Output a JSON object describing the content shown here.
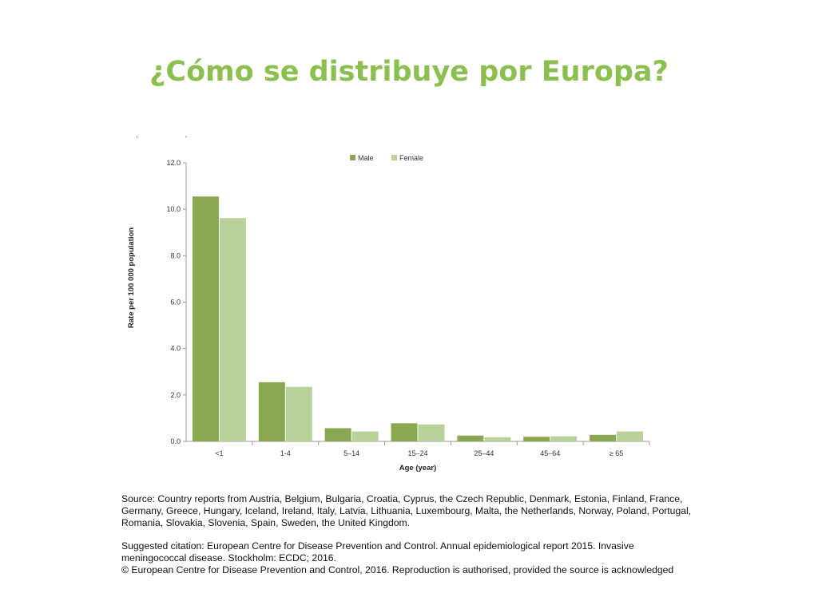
{
  "slide": {
    "title": "¿Cómo se distribuye por Europa?",
    "title_color": "#8cc04e",
    "stray_marks": ".   ."
  },
  "chart_data": {
    "type": "bar",
    "categories": [
      "<1",
      "1-4",
      "5–14",
      "15–24",
      "25–44",
      "45–64",
      "≥ 65"
    ],
    "series": [
      {
        "name": "Male",
        "color": "#8aa851",
        "values": [
          10.55,
          2.55,
          0.57,
          0.78,
          0.25,
          0.2,
          0.28
        ]
      },
      {
        "name": "Female",
        "color": "#b9d19a",
        "values": [
          9.62,
          2.35,
          0.43,
          0.73,
          0.18,
          0.22,
          0.43
        ]
      }
    ],
    "xlabel": "Age (year)",
    "ylabel": "Rate per 100 000 population",
    "ylim": [
      0,
      12
    ],
    "yticks": [
      "0.0",
      "2.0",
      "4.0",
      "6.0",
      "8.0",
      "10.0",
      "12.0"
    ],
    "grid": false,
    "legend_position": "top-center"
  },
  "footer": {
    "source": "Source: Country reports from Austria, Belgium, Bulgaria, Croatia, Cyprus, the Czech Republic, Denmark, Estonia, Finland, France, Germany, Greece, Hungary, Iceland, Ireland, Italy, Latvia, Lithuania, Luxembourg, Malta, the Netherlands, Norway, Poland, Portugal, Romania, Slovakia, Slovenia, Spain, Sweden, the United Kingdom.",
    "citation": "Suggested citation: European Centre for Disease Prevention and Control. Annual epidemiological report 2015. Invasive meningococcal disease. Stockholm: ECDC; 2016.",
    "copyright": "© European Centre for Disease Prevention and Control, 2016. Reproduction is authorised, provided the source is acknowledged"
  }
}
